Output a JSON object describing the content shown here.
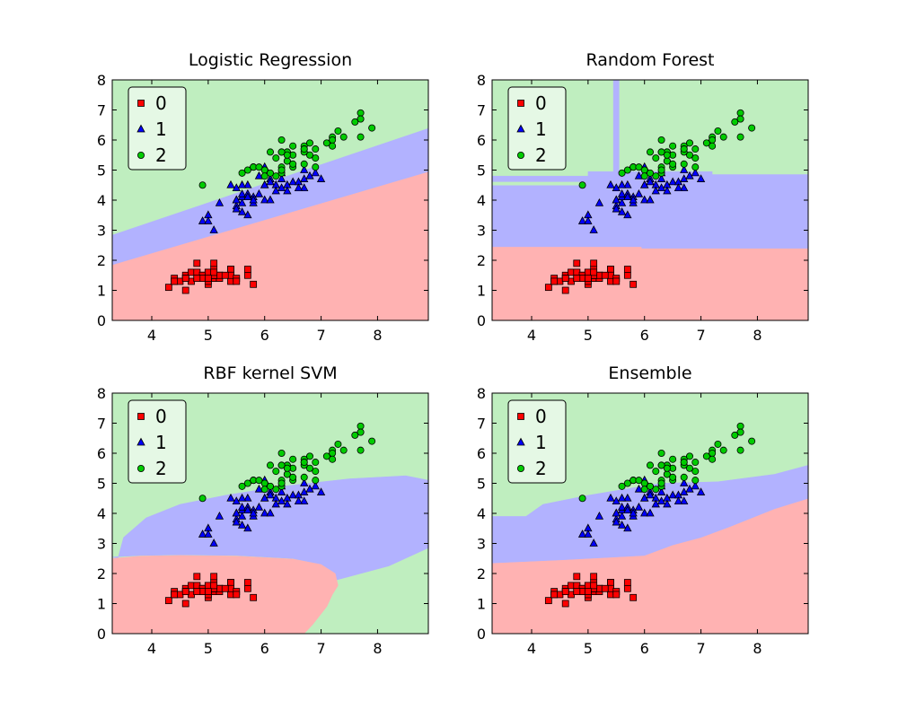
{
  "figure": {
    "ncols": 2,
    "nrows": 2
  },
  "colors": {
    "class0_region": "#ffb2b2",
    "class1_region": "#b2b2ff",
    "class2_region": "#bfeebf",
    "class0_marker": "#ff0000",
    "class1_marker": "#0000ff",
    "class2_marker": "#00cc00",
    "marker_edge": "#000000"
  },
  "legend": {
    "placement": "upper-left",
    "entries": [
      {
        "label": "0",
        "marker": "square",
        "color": "#ff0000"
      },
      {
        "label": "1",
        "marker": "triangle",
        "color": "#0000ff"
      },
      {
        "label": "2",
        "marker": "circle",
        "color": "#00cc00"
      }
    ]
  },
  "chart_data": [
    {
      "type": "scatter",
      "title": "Logistic Regression",
      "xlim": [
        3.3,
        8.9
      ],
      "ylim": [
        0,
        8
      ],
      "xticks": [
        "4",
        "5",
        "6",
        "7",
        "8"
      ],
      "yticks": [
        "0",
        "1",
        "2",
        "3",
        "4",
        "5",
        "6",
        "7",
        "8"
      ],
      "regions": [
        {
          "class": 0,
          "polygon": [
            [
              3.3,
              0
            ],
            [
              8.9,
              0
            ],
            [
              8.9,
              4.95
            ],
            [
              3.3,
              1.85
            ]
          ]
        },
        {
          "class": 1,
          "polygon": [
            [
              3.3,
              1.85
            ],
            [
              8.9,
              4.95
            ],
            [
              8.9,
              6.4
            ],
            [
              3.3,
              2.85
            ]
          ]
        },
        {
          "class": 2,
          "polygon": [
            [
              3.3,
              2.85
            ],
            [
              8.9,
              6.4
            ],
            [
              8.9,
              8
            ],
            [
              3.3,
              8
            ]
          ]
        }
      ]
    },
    {
      "type": "scatter",
      "title": "Random Forest",
      "xlim": [
        3.3,
        8.9
      ],
      "ylim": [
        0,
        8
      ],
      "xticks": [
        "4",
        "5",
        "6",
        "7",
        "8"
      ],
      "yticks": [
        "0",
        "1",
        "2",
        "3",
        "4",
        "5",
        "6",
        "7",
        "8"
      ],
      "regions": [
        {
          "class": 0,
          "polygon": [
            [
              3.3,
              0
            ],
            [
              8.9,
              0
            ],
            [
              8.9,
              2.4
            ],
            [
              5.95,
              2.4
            ],
            [
              5.95,
              2.45
            ],
            [
              3.3,
              2.45
            ]
          ]
        },
        {
          "class": 1,
          "polygon": [
            [
              3.3,
              2.45
            ],
            [
              5.95,
              2.45
            ],
            [
              5.95,
              2.4
            ],
            [
              8.9,
              2.4
            ],
            [
              8.9,
              4.85
            ],
            [
              7.2,
              4.85
            ],
            [
              7.2,
              4.95
            ],
            [
              5.55,
              4.95
            ],
            [
              5.55,
              8
            ],
            [
              5.45,
              8
            ],
            [
              5.45,
              4.95
            ],
            [
              5.0,
              4.95
            ],
            [
              5.0,
              4.8
            ],
            [
              3.3,
              4.8
            ]
          ]
        },
        {
          "class": 2,
          "polygon": [
            [
              3.3,
              4.6
            ],
            [
              4.95,
              4.6
            ],
            [
              4.95,
              4.5
            ],
            [
              3.3,
              4.5
            ]
          ]
        },
        {
          "class": 2,
          "polygon": [
            [
              5.6,
              5.05
            ],
            [
              5.7,
              5.05
            ],
            [
              5.7,
              5.1
            ],
            [
              5.6,
              5.1
            ]
          ]
        }
      ]
    },
    {
      "type": "scatter",
      "title": "RBF kernel SVM",
      "xlim": [
        3.3,
        8.9
      ],
      "ylim": [
        0,
        8
      ],
      "xticks": [
        "4",
        "5",
        "6",
        "7",
        "8"
      ],
      "yticks": [
        "0",
        "1",
        "2",
        "3",
        "4",
        "5",
        "6",
        "7",
        "8"
      ],
      "regions": [
        {
          "class": 1,
          "polygon": [
            [
              3.4,
              2.5
            ],
            [
              3.5,
              3.2
            ],
            [
              3.9,
              3.85
            ],
            [
              4.5,
              4.3
            ],
            [
              5.3,
              4.6
            ],
            [
              6.3,
              4.9
            ],
            [
              7.5,
              5.15
            ],
            [
              8.5,
              5.25
            ],
            [
              8.9,
              5.1
            ],
            [
              8.9,
              2.85
            ],
            [
              8.2,
              2.25
            ],
            [
              7.5,
              1.9
            ],
            [
              7.2,
              1.75
            ],
            [
              7.2,
              2.0
            ],
            [
              7.0,
              2.3
            ],
            [
              6.5,
              2.5
            ],
            [
              5.5,
              2.6
            ],
            [
              4.5,
              2.62
            ],
            [
              3.8,
              2.6
            ],
            [
              3.3,
              2.55
            ]
          ]
        },
        {
          "class": 0,
          "polygon": [
            [
              3.3,
              0
            ],
            [
              6.7,
              0
            ],
            [
              6.85,
              0.3
            ],
            [
              7.1,
              0.9
            ],
            [
              7.2,
              1.3
            ],
            [
              7.3,
              1.6
            ],
            [
              7.25,
              2.0
            ],
            [
              7.0,
              2.3
            ],
            [
              6.5,
              2.48
            ],
            [
              5.5,
              2.58
            ],
            [
              4.5,
              2.6
            ],
            [
              3.8,
              2.58
            ],
            [
              3.3,
              2.5
            ]
          ]
        }
      ]
    },
    {
      "type": "scatter",
      "title": "Ensemble",
      "xlim": [
        3.3,
        8.9
      ],
      "ylim": [
        0,
        8
      ],
      "xticks": [
        "4",
        "5",
        "6",
        "7",
        "8"
      ],
      "yticks": [
        "0",
        "1",
        "2",
        "3",
        "4",
        "5",
        "6",
        "7",
        "8"
      ],
      "regions": [
        {
          "class": 0,
          "polygon": [
            [
              3.3,
              0
            ],
            [
              8.9,
              0
            ],
            [
              8.9,
              4.5
            ],
            [
              8.3,
              4.15
            ],
            [
              7.5,
              3.55
            ],
            [
              7.0,
              3.2
            ],
            [
              6.5,
              2.95
            ],
            [
              6.0,
              2.6
            ],
            [
              5.5,
              2.55
            ],
            [
              4.5,
              2.45
            ],
            [
              3.3,
              2.35
            ]
          ]
        },
        {
          "class": 1,
          "polygon": [
            [
              3.3,
              2.35
            ],
            [
              4.5,
              2.45
            ],
            [
              5.5,
              2.55
            ],
            [
              6.0,
              2.6
            ],
            [
              6.5,
              2.95
            ],
            [
              7.0,
              3.2
            ],
            [
              7.5,
              3.55
            ],
            [
              8.3,
              4.15
            ],
            [
              8.9,
              4.5
            ],
            [
              8.9,
              5.6
            ],
            [
              8.3,
              5.3
            ],
            [
              7.3,
              5.05
            ],
            [
              6.3,
              5.0
            ],
            [
              5.8,
              4.85
            ],
            [
              5.0,
              4.6
            ],
            [
              4.2,
              4.3
            ],
            [
              3.9,
              3.9
            ],
            [
              3.3,
              3.9
            ]
          ]
        }
      ]
    }
  ],
  "points": {
    "class0": [
      [
        5.1,
        1.4
      ],
      [
        4.9,
        1.4
      ],
      [
        4.7,
        1.3
      ],
      [
        4.6,
        1.5
      ],
      [
        5.0,
        1.4
      ],
      [
        5.4,
        1.7
      ],
      [
        4.6,
        1.4
      ],
      [
        5.0,
        1.5
      ],
      [
        4.4,
        1.4
      ],
      [
        4.9,
        1.5
      ],
      [
        5.4,
        1.5
      ],
      [
        4.8,
        1.6
      ],
      [
        4.8,
        1.4
      ],
      [
        4.3,
        1.1
      ],
      [
        5.8,
        1.2
      ],
      [
        5.7,
        1.5
      ],
      [
        5.4,
        1.3
      ],
      [
        5.1,
        1.4
      ],
      [
        5.7,
        1.7
      ],
      [
        5.1,
        1.5
      ],
      [
        5.4,
        1.7
      ],
      [
        5.1,
        1.5
      ],
      [
        4.6,
        1.0
      ],
      [
        5.1,
        1.7
      ],
      [
        4.8,
        1.9
      ],
      [
        5.0,
        1.6
      ],
      [
        5.0,
        1.6
      ],
      [
        5.2,
        1.5
      ],
      [
        5.2,
        1.4
      ],
      [
        4.7,
        1.6
      ],
      [
        4.8,
        1.6
      ],
      [
        5.4,
        1.5
      ],
      [
        5.2,
        1.5
      ],
      [
        5.5,
        1.4
      ],
      [
        4.9,
        1.5
      ],
      [
        5.0,
        1.2
      ],
      [
        5.5,
        1.3
      ],
      [
        4.9,
        1.4
      ],
      [
        4.4,
        1.3
      ],
      [
        5.1,
        1.5
      ],
      [
        5.0,
        1.3
      ],
      [
        4.5,
        1.3
      ],
      [
        4.4,
        1.3
      ],
      [
        5.0,
        1.6
      ],
      [
        5.1,
        1.9
      ],
      [
        4.8,
        1.4
      ],
      [
        5.1,
        1.6
      ],
      [
        4.6,
        1.4
      ],
      [
        5.3,
        1.5
      ],
      [
        5.0,
        1.4
      ]
    ],
    "class1": [
      [
        7.0,
        4.7
      ],
      [
        6.4,
        4.5
      ],
      [
        6.9,
        4.9
      ],
      [
        5.5,
        4.0
      ],
      [
        6.5,
        4.6
      ],
      [
        5.7,
        4.5
      ],
      [
        6.3,
        4.7
      ],
      [
        4.9,
        3.3
      ],
      [
        6.6,
        4.6
      ],
      [
        5.2,
        3.9
      ],
      [
        5.0,
        3.5
      ],
      [
        5.9,
        4.2
      ],
      [
        6.0,
        4.0
      ],
      [
        6.1,
        4.7
      ],
      [
        5.6,
        3.6
      ],
      [
        6.7,
        4.4
      ],
      [
        5.6,
        4.5
      ],
      [
        5.8,
        4.1
      ],
      [
        6.2,
        4.5
      ],
      [
        5.6,
        3.9
      ],
      [
        5.9,
        4.8
      ],
      [
        6.1,
        4.0
      ],
      [
        6.3,
        4.9
      ],
      [
        6.1,
        4.7
      ],
      [
        6.4,
        4.3
      ],
      [
        6.6,
        4.4
      ],
      [
        6.8,
        4.8
      ],
      [
        6.7,
        5.0
      ],
      [
        6.0,
        4.5
      ],
      [
        5.7,
        3.5
      ],
      [
        5.5,
        3.8
      ],
      [
        5.5,
        3.7
      ],
      [
        5.8,
        3.9
      ],
      [
        6.0,
        5.1
      ],
      [
        5.4,
        4.5
      ],
      [
        6.0,
        4.5
      ],
      [
        6.7,
        4.7
      ],
      [
        6.3,
        4.4
      ],
      [
        5.6,
        4.1
      ],
      [
        5.5,
        4.0
      ],
      [
        5.5,
        4.4
      ],
      [
        6.1,
        4.6
      ],
      [
        5.8,
        4.0
      ],
      [
        5.0,
        3.3
      ],
      [
        5.6,
        4.2
      ],
      [
        5.7,
        4.2
      ],
      [
        5.7,
        4.2
      ],
      [
        6.2,
        4.3
      ],
      [
        5.1,
        3.0
      ],
      [
        5.7,
        4.1
      ]
    ],
    "class2": [
      [
        6.3,
        6.0
      ],
      [
        5.8,
        5.1
      ],
      [
        7.1,
        5.9
      ],
      [
        6.3,
        5.6
      ],
      [
        6.5,
        5.8
      ],
      [
        7.6,
        6.6
      ],
      [
        4.9,
        4.5
      ],
      [
        7.3,
        6.3
      ],
      [
        6.7,
        5.8
      ],
      [
        7.2,
        6.1
      ],
      [
        6.5,
        5.1
      ],
      [
        6.4,
        5.3
      ],
      [
        6.8,
        5.5
      ],
      [
        5.7,
        5.0
      ],
      [
        5.8,
        5.1
      ],
      [
        6.4,
        5.3
      ],
      [
        6.5,
        5.5
      ],
      [
        7.7,
        6.7
      ],
      [
        7.7,
        6.9
      ],
      [
        6.0,
        5.0
      ],
      [
        6.9,
        5.7
      ],
      [
        5.6,
        4.9
      ],
      [
        7.7,
        6.7
      ],
      [
        6.3,
        4.9
      ],
      [
        6.7,
        5.7
      ],
      [
        7.2,
        6.0
      ],
      [
        6.2,
        4.8
      ],
      [
        6.1,
        4.9
      ],
      [
        6.4,
        5.6
      ],
      [
        7.2,
        5.8
      ],
      [
        7.4,
        6.1
      ],
      [
        7.9,
        6.4
      ],
      [
        6.4,
        5.6
      ],
      [
        6.3,
        5.1
      ],
      [
        6.1,
        5.6
      ],
      [
        7.7,
        6.1
      ],
      [
        6.3,
        5.6
      ],
      [
        6.4,
        5.5
      ],
      [
        6.0,
        4.8
      ],
      [
        6.9,
        5.4
      ],
      [
        6.7,
        5.6
      ],
      [
        6.9,
        5.1
      ],
      [
        5.8,
        5.1
      ],
      [
        6.8,
        5.9
      ],
      [
        6.7,
        5.7
      ],
      [
        6.7,
        5.2
      ],
      [
        6.3,
        5.0
      ],
      [
        6.5,
        5.2
      ],
      [
        6.2,
        5.4
      ],
      [
        5.9,
        5.1
      ]
    ]
  }
}
